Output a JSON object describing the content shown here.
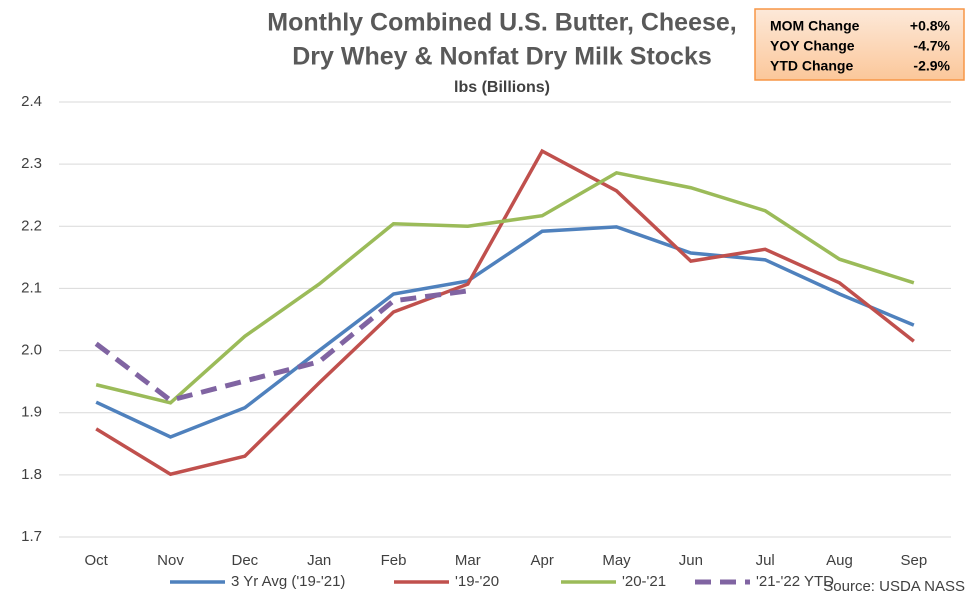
{
  "chart_data": {
    "type": "line",
    "title": [
      "Monthly Combined U.S. Butter, Cheese,",
      "Dry Whey & Nonfat Dry Milk Stocks"
    ],
    "subtitle": "lbs (Billions)",
    "source": "Source: USDA NASS",
    "categories": [
      "Oct",
      "Nov",
      "Dec",
      "Jan",
      "Feb",
      "Mar",
      "Apr",
      "May",
      "Jun",
      "Jul",
      "Aug",
      "Sep"
    ],
    "series": [
      {
        "name": "3 Yr Avg ('19-'21)",
        "color": "#4f81bd",
        "dashed": false,
        "values": [
          1.917,
          1.861,
          1.908,
          2.0,
          2.091,
          2.112,
          2.192,
          2.199,
          2.157,
          2.146,
          2.091,
          2.041
        ]
      },
      {
        "name": "'19-'20",
        "color": "#c0504d",
        "dashed": false,
        "values": [
          1.874,
          1.801,
          1.83,
          1.948,
          2.062,
          2.107,
          2.321,
          2.257,
          2.144,
          2.163,
          2.109,
          2.015
        ]
      },
      {
        "name": "'20-'21",
        "color": "#9bbb59",
        "dashed": false,
        "values": [
          1.945,
          1.916,
          2.023,
          2.107,
          2.204,
          2.2,
          2.217,
          2.286,
          2.262,
          2.225,
          2.147,
          2.109
        ]
      },
      {
        "name": "'21-'22 YTD",
        "color": "#8064a2",
        "dashed": true,
        "values": [
          2.011,
          1.92,
          1.951,
          1.982,
          2.08,
          2.096,
          null,
          null,
          null,
          null,
          null,
          null
        ]
      }
    ],
    "ylim": [
      1.7,
      2.4
    ],
    "yticks": [
      {
        "value": 1.7,
        "label": "1.7"
      },
      1.8,
      1.9,
      {
        "value": 2,
        "label": "2.0"
      },
      2.1,
      2.2,
      2.3,
      2.4
    ],
    "grid": true,
    "legend": "bottom",
    "summary_table": [
      [
        "MOM Change",
        "+0.8%"
      ],
      [
        "YOY Change",
        "-4.7%"
      ],
      [
        "YTD Change",
        "-2.9%"
      ]
    ]
  }
}
